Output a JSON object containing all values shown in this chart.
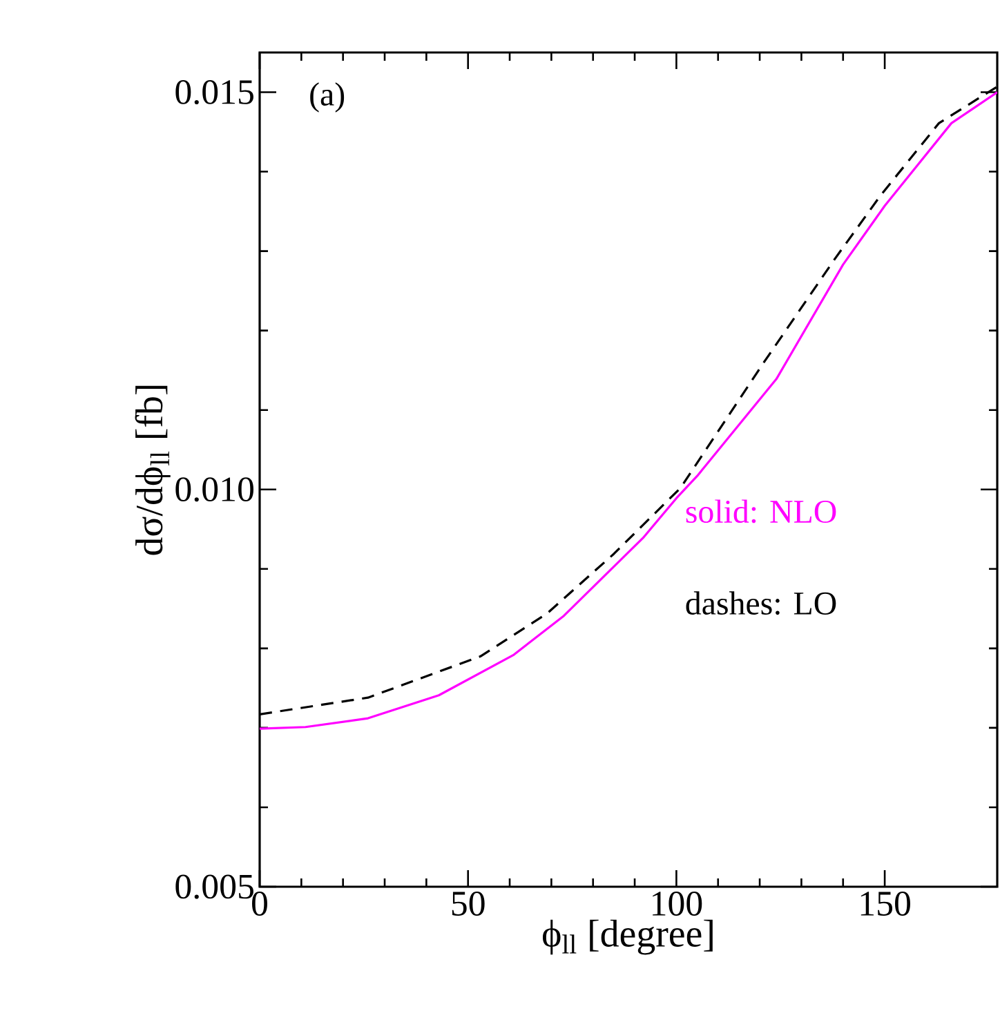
{
  "chart_data": {
    "type": "line",
    "xlabel": "ϕ$_{ll}$  [degree]",
    "ylabel": "dσ/dϕ$_{ll}$  [fb]",
    "xlim": [
      0,
      177
    ],
    "ylim": [
      0.005,
      0.0155
    ],
    "xticks": [
      0,
      50,
      100,
      150
    ],
    "yticks": [
      {
        "value": 0.005,
        "label": "0.005"
      },
      {
        "value": 0.01,
        "label": "0.010"
      },
      {
        "value": 0.015,
        "label": "0.015"
      }
    ],
    "annotations": [
      "(a)"
    ],
    "series": [
      {
        "name": "solid: NLO",
        "color": "#ff00ff",
        "line_style": "solid",
        "x": [
          0,
          11,
          26,
          43,
          61,
          73,
          92,
          100,
          105,
          124,
          140,
          150,
          166,
          177
        ],
        "values": [
          0.00699,
          0.00701,
          0.00712,
          0.00741,
          0.00792,
          0.00841,
          0.00939,
          0.00989,
          0.01017,
          0.01139,
          0.01283,
          0.01357,
          0.01461,
          0.015
        ]
      },
      {
        "name": "dashes: LO",
        "color": "#000000",
        "line_style": "dashed",
        "x": [
          0,
          26,
          53,
          69,
          85,
          101,
          121,
          138,
          149,
          163,
          177
        ],
        "values": [
          0.00717,
          0.00738,
          0.0079,
          0.00844,
          0.00919,
          0.01002,
          0.0116,
          0.0129,
          0.0137,
          0.01461,
          0.01507
        ]
      }
    ]
  }
}
